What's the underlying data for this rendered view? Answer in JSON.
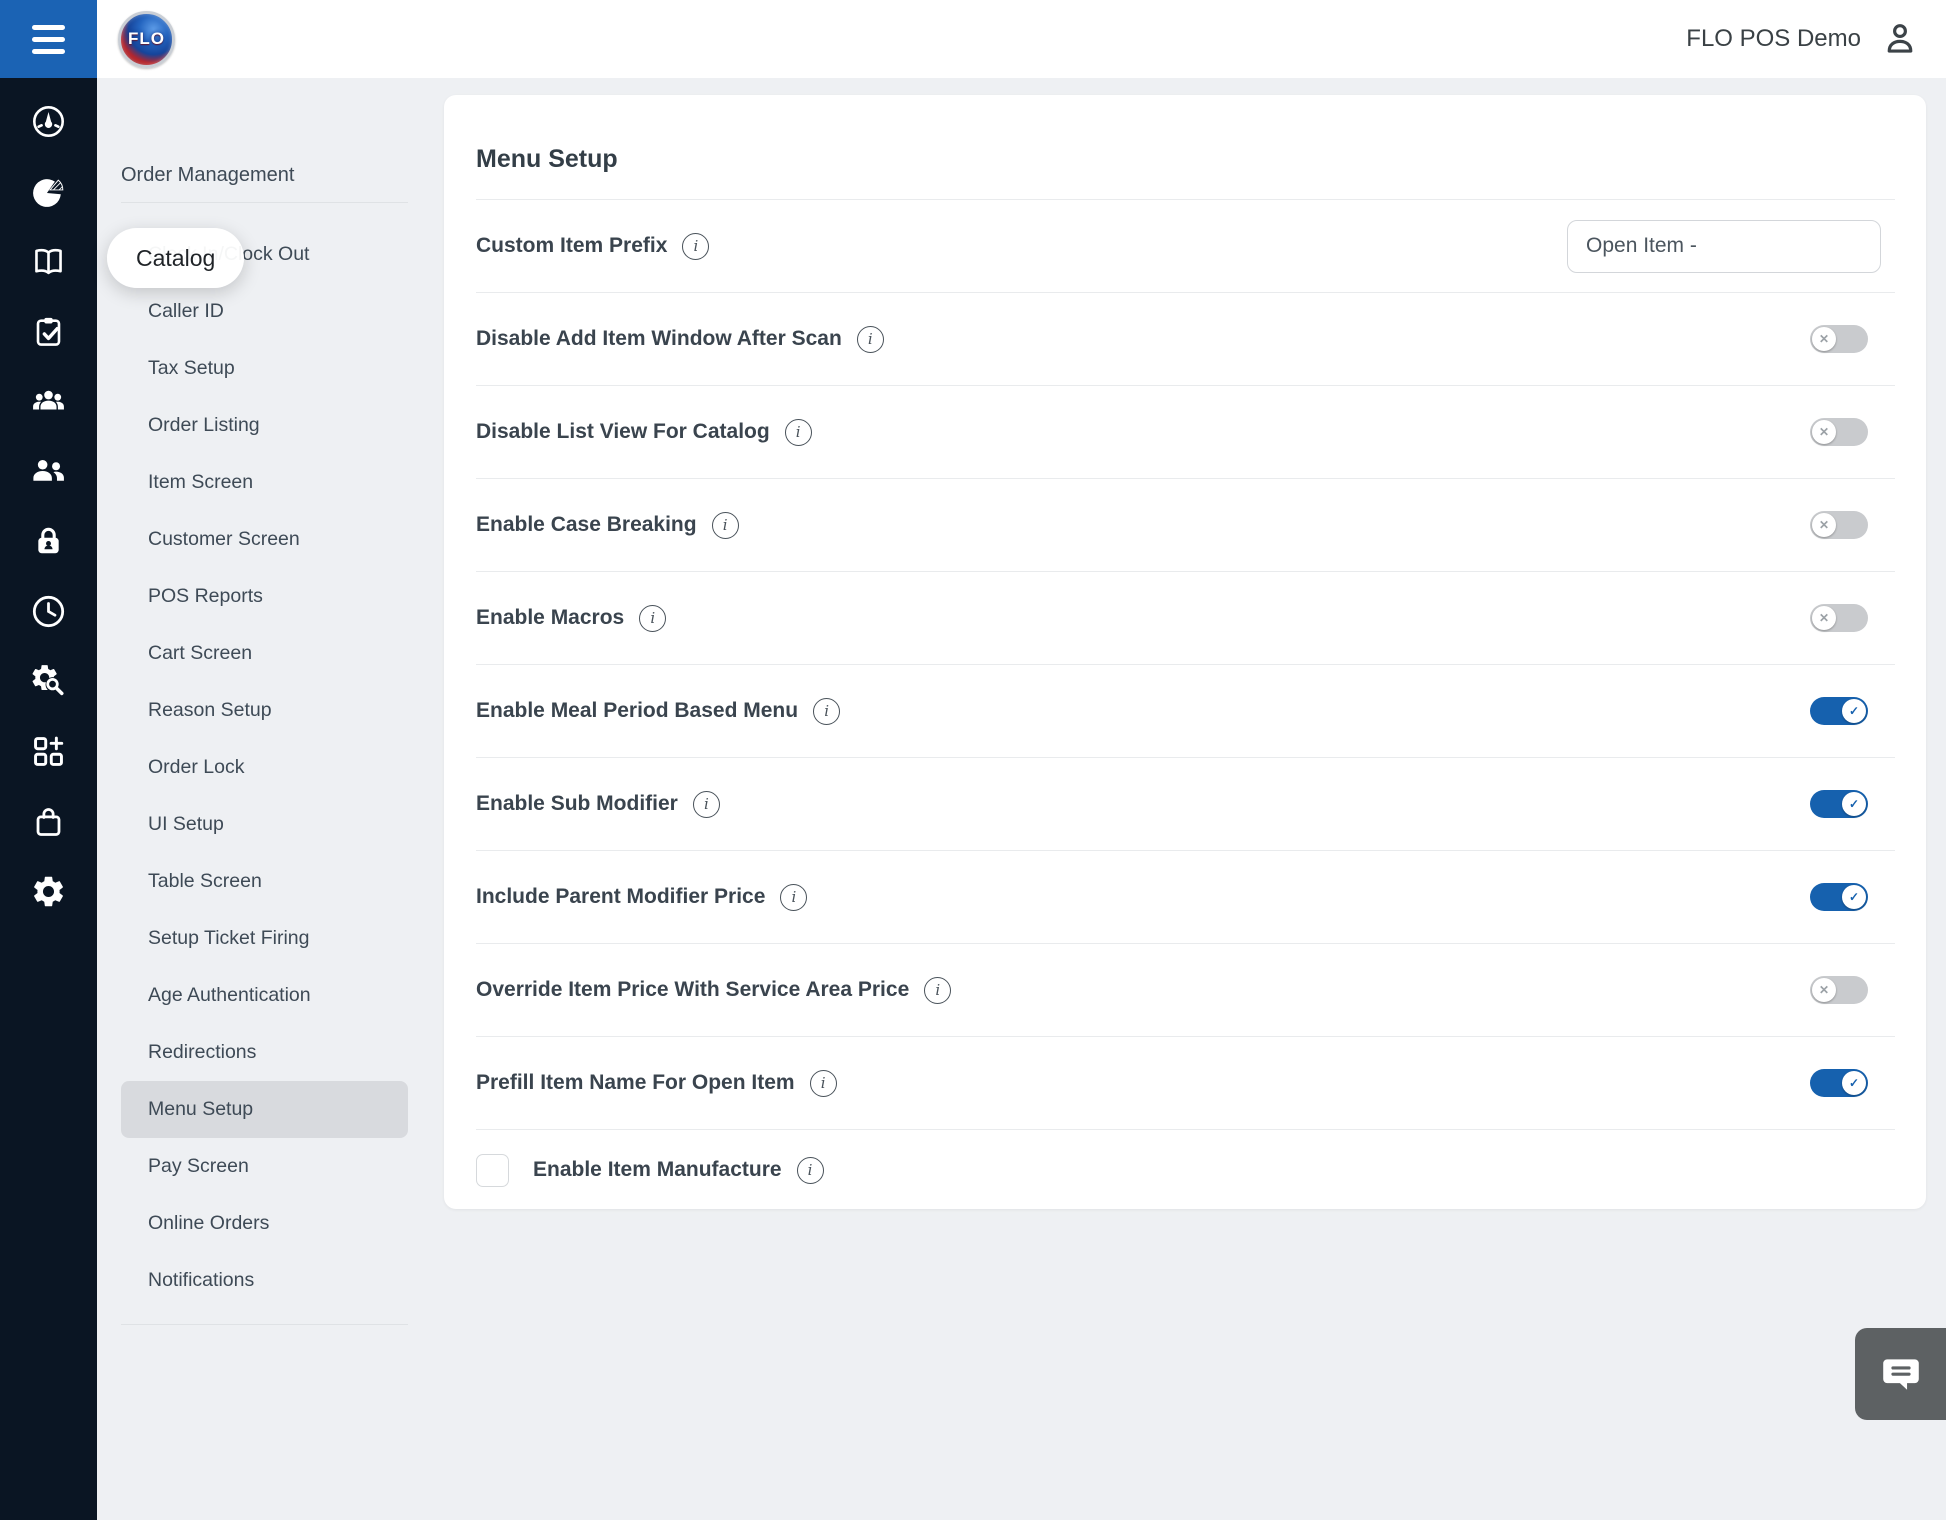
{
  "app": {
    "header": {
      "logo_text": "FLO",
      "account_name": "FLO POS Demo"
    },
    "icon_rail": [
      "dashboard",
      "pie-chart",
      "catalog-book",
      "clipboard-check",
      "customers-group",
      "employees",
      "security-lock",
      "time-clock",
      "settings-search",
      "addons-grid",
      "shopping-bag",
      "settings-gear"
    ],
    "nav": {
      "section_title": "Order Management",
      "items": [
        "Clock In/Clock Out",
        "Caller ID",
        "Tax Setup",
        "Order Listing",
        "Item Screen",
        "Customer Screen",
        "POS Reports",
        "Cart Screen",
        "Reason Setup",
        "Order Lock",
        "UI Setup",
        "Table Screen",
        "Setup Ticket Firing",
        "Age Authentication",
        "Redirections",
        "Menu Setup",
        "Pay Screen",
        "Online Orders",
        "Notifications"
      ],
      "active_item": "Menu Setup"
    },
    "tooltip": {
      "label": "Catalog"
    },
    "panel": {
      "title": "Menu Setup",
      "settings": [
        {
          "label": "Custom Item Prefix",
          "control": "text",
          "value": "Open Item -"
        },
        {
          "label": "Disable Add Item Window After Scan",
          "control": "toggle",
          "enabled": false
        },
        {
          "label": "Disable List View For Catalog",
          "control": "toggle",
          "enabled": false
        },
        {
          "label": "Enable Case Breaking",
          "control": "toggle",
          "enabled": false
        },
        {
          "label": "Enable Macros",
          "control": "toggle",
          "enabled": false
        },
        {
          "label": "Enable Meal Period Based Menu",
          "control": "toggle",
          "enabled": true
        },
        {
          "label": "Enable Sub Modifier",
          "control": "toggle",
          "enabled": true
        },
        {
          "label": "Include Parent Modifier Price",
          "control": "toggle",
          "enabled": true
        },
        {
          "label": "Override Item Price With Service Area Price",
          "control": "toggle",
          "enabled": false
        },
        {
          "label": "Prefill Item Name For Open Item",
          "control": "toggle",
          "enabled": true
        },
        {
          "label": "Enable Item Manufacture",
          "control": "checkbox",
          "checked": false
        }
      ]
    },
    "colors": {
      "brand_blue": "#1b63b4",
      "toggle_on": "#1661ae",
      "toggle_off": "#c9cbce",
      "sidebar_bg": "#0a1523",
      "page_bg": "#eef0f3",
      "active_item_bg": "#d8dade",
      "chat_button_bg": "#5d6163"
    }
  }
}
